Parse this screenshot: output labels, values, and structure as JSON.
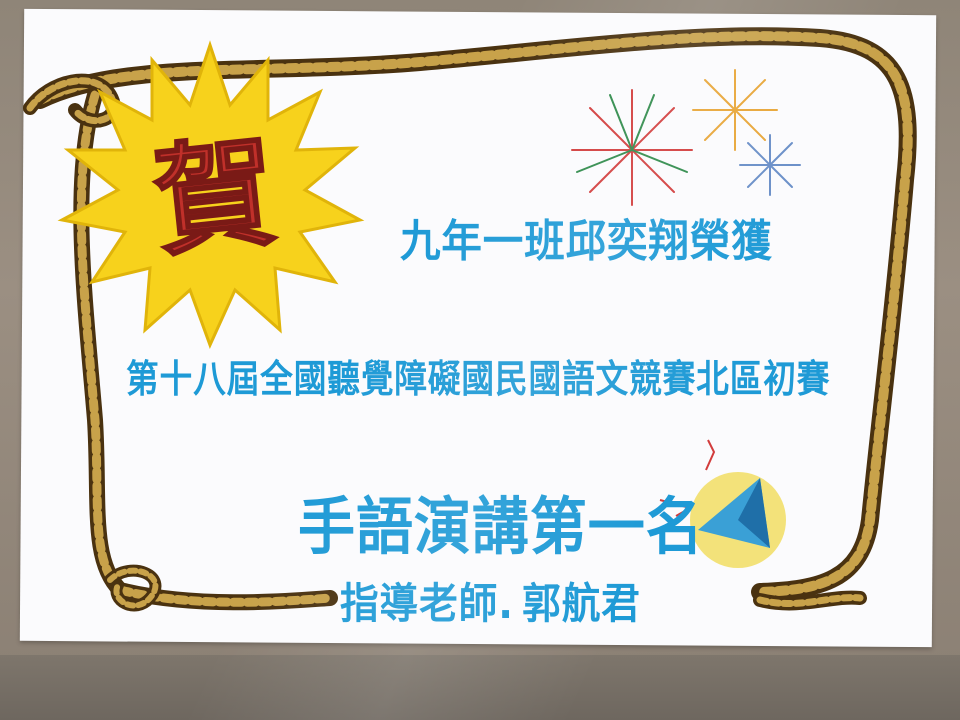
{
  "poster": {
    "badge_char": "賀",
    "line1": "九年一班邱奕翔榮獲",
    "line2": "第十八屆全國聽覺障礙國民國語文競賽北區初賽",
    "line3": "手語演講第一名",
    "line4_role": "指導老師",
    "line4_name": "郭航君"
  },
  "colors": {
    "text_blue": "#1e9ad6",
    "starburst_yellow": "#f7d21c",
    "badge_red": "#c0302a",
    "rope_brown": "#6b4a1a",
    "rope_highlight": "#c8a24a"
  },
  "icons": [
    "starburst-icon",
    "rope-border-icon",
    "firework-icon",
    "kite-icon"
  ]
}
